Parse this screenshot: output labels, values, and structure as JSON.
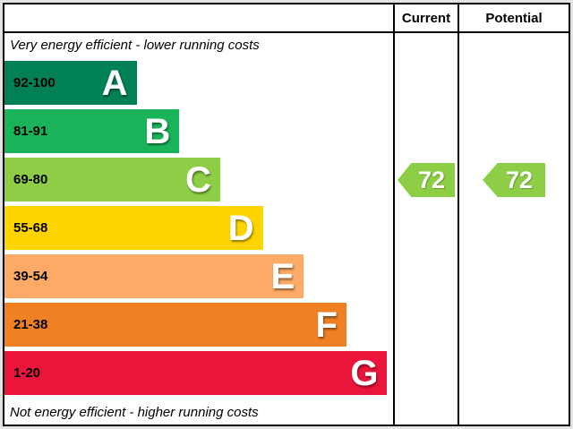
{
  "header": {
    "current_label": "Current",
    "potential_label": "Potential"
  },
  "captions": {
    "top": "Very energy efficient - lower running costs",
    "bottom": "Not energy efficient - higher running costs"
  },
  "bands": [
    {
      "letter": "A",
      "range": "92-100",
      "color": "#008054",
      "width_pct": 34
    },
    {
      "letter": "B",
      "range": "81-91",
      "color": "#19b459",
      "width_pct": 45
    },
    {
      "letter": "C",
      "range": "69-80",
      "color": "#8dce46",
      "width_pct": 55.5
    },
    {
      "letter": "D",
      "range": "55-68",
      "color": "#ffd500",
      "width_pct": 66.5
    },
    {
      "letter": "E",
      "range": "39-54",
      "color": "#fcaa65",
      "width_pct": 77
    },
    {
      "letter": "F",
      "range": "21-38",
      "color": "#ef8023",
      "width_pct": 88
    },
    {
      "letter": "G",
      "range": "1-20",
      "color": "#e9153b",
      "width_pct": 98.5
    }
  ],
  "current": {
    "value": "72",
    "color": "#8dce46"
  },
  "potential": {
    "value": "72",
    "color": "#8dce46"
  },
  "chart_data": {
    "type": "bar",
    "categories": [
      "A",
      "B",
      "C",
      "D",
      "E",
      "F",
      "G"
    ],
    "band_ranges": [
      "92-100",
      "81-91",
      "69-80",
      "55-68",
      "39-54",
      "21-38",
      "1-20"
    ],
    "band_colors": [
      "#008054",
      "#19b459",
      "#8dce46",
      "#ffd500",
      "#fcaa65",
      "#ef8023",
      "#e9153b"
    ],
    "scale_min": 1,
    "scale_max": 100,
    "series": [
      {
        "name": "Current",
        "value": 72,
        "band": "C",
        "color": "#8dce46"
      },
      {
        "name": "Potential",
        "value": 72,
        "band": "C",
        "color": "#8dce46"
      }
    ],
    "top_caption": "Very energy efficient - lower running costs",
    "bottom_caption": "Not energy efficient - higher running costs"
  }
}
